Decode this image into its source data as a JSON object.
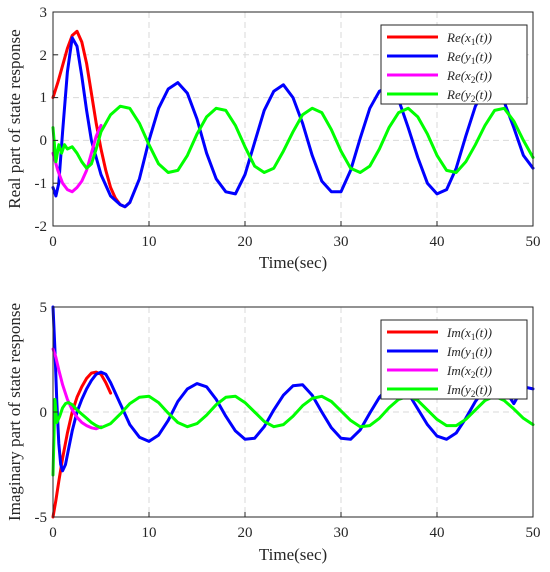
{
  "chart_data": [
    {
      "type": "line",
      "xlabel": "Time(sec)",
      "ylabel": "Real part of state response",
      "xlim": [
        0,
        50
      ],
      "ylim": [
        -2,
        3
      ],
      "xticks": [
        "0",
        "10",
        "20",
        "30",
        "40",
        "50"
      ],
      "yticks": [
        "-2",
        "-1",
        "0",
        "1",
        "2",
        "3"
      ],
      "grid": true,
      "legend_position": "top-right",
      "series": [
        {
          "name": "Re(x1(t))",
          "color": "#ff0000",
          "x": [
            0,
            0.5,
            1,
            1.5,
            2,
            2.5,
            3,
            3.5,
            4,
            4.5,
            5,
            5.5,
            6,
            6.5,
            7,
            7.5,
            8
          ],
          "y": [
            1.0,
            1.35,
            1.75,
            2.15,
            2.45,
            2.55,
            2.3,
            1.8,
            1.1,
            0.4,
            -0.2,
            -0.7,
            -1.1,
            -1.35,
            -1.5,
            -1.55,
            -1.45
          ]
        },
        {
          "name": "Re(y1(t))",
          "color": "#0000ff",
          "x": [
            0,
            0.3,
            0.6,
            1,
            1.5,
            2,
            2.5,
            3,
            3.5,
            4,
            5,
            6,
            7,
            7.5,
            8,
            9,
            10,
            11,
            12,
            13,
            14,
            15,
            16,
            17,
            18,
            19,
            20,
            21,
            22,
            23,
            24,
            25,
            26,
            27,
            28,
            29,
            30,
            31,
            32,
            33,
            34,
            35,
            36,
            37,
            38,
            39,
            40,
            41,
            42,
            43,
            44,
            45,
            46,
            47,
            48,
            49,
            50
          ],
          "y": [
            -1.1,
            -1.3,
            -1.0,
            0.2,
            1.6,
            2.4,
            2.2,
            1.5,
            0.7,
            0.0,
            -0.8,
            -1.3,
            -1.5,
            -1.55,
            -1.45,
            -0.9,
            0.0,
            0.75,
            1.2,
            1.35,
            1.1,
            0.5,
            -0.3,
            -0.9,
            -1.2,
            -1.25,
            -0.8,
            -0.05,
            0.7,
            1.15,
            1.3,
            1.0,
            0.4,
            -0.35,
            -0.95,
            -1.2,
            -1.2,
            -0.7,
            0.05,
            0.75,
            1.15,
            1.25,
            0.95,
            0.3,
            -0.4,
            -1.0,
            -1.25,
            -1.15,
            -0.65,
            0.1,
            0.8,
            1.2,
            1.25,
            0.9,
            0.3,
            -0.35,
            -0.65
          ]
        },
        {
          "name": "Re(x2(t))",
          "color": "#ff00ff",
          "x": [
            0,
            0.5,
            1,
            1.5,
            2,
            2.5,
            3,
            3.5,
            4,
            4.5,
            5
          ],
          "y": [
            -0.3,
            -0.7,
            -1.0,
            -1.15,
            -1.2,
            -1.1,
            -0.95,
            -0.7,
            -0.3,
            0.1,
            0.35
          ]
        },
        {
          "name": "Re(y2(t))",
          "color": "#00ff00",
          "x": [
            0,
            0.3,
            0.6,
            0.9,
            1.2,
            1.5,
            2,
            2.5,
            3,
            3.5,
            4,
            4.5,
            5,
            6,
            7,
            8,
            9,
            10,
            11,
            12,
            13,
            14,
            15,
            16,
            17,
            18,
            19,
            20,
            21,
            22,
            23,
            24,
            25,
            26,
            27,
            28,
            29,
            30,
            31,
            32,
            33,
            34,
            35,
            36,
            37,
            38,
            39,
            40,
            41,
            42,
            43,
            44,
            45,
            46,
            47,
            48,
            49,
            50
          ],
          "y": [
            0.3,
            -0.5,
            -0.1,
            -0.3,
            -0.1,
            -0.2,
            -0.15,
            -0.3,
            -0.5,
            -0.65,
            -0.55,
            -0.2,
            0.2,
            0.6,
            0.8,
            0.75,
            0.4,
            -0.1,
            -0.55,
            -0.75,
            -0.7,
            -0.35,
            0.15,
            0.55,
            0.75,
            0.7,
            0.35,
            -0.15,
            -0.6,
            -0.75,
            -0.65,
            -0.25,
            0.2,
            0.6,
            0.75,
            0.65,
            0.25,
            -0.25,
            -0.65,
            -0.75,
            -0.6,
            -0.2,
            0.3,
            0.65,
            0.75,
            0.55,
            0.15,
            -0.35,
            -0.7,
            -0.75,
            -0.5,
            -0.1,
            0.35,
            0.7,
            0.75,
            0.45,
            0.0,
            -0.4
          ]
        }
      ]
    },
    {
      "type": "line",
      "xlabel": "Time(sec)",
      "ylabel": "Imaginary part of state response",
      "xlim": [
        0,
        50
      ],
      "ylim": [
        -5,
        5
      ],
      "xticks": [
        "0",
        "10",
        "20",
        "30",
        "40",
        "50"
      ],
      "yticks": [
        "-5",
        "0",
        "5"
      ],
      "grid": true,
      "legend_position": "top-right",
      "series": [
        {
          "name": "Im(x1(t))",
          "color": "#ff0000",
          "x": [
            0,
            0.3,
            0.6,
            1,
            1.5,
            2,
            2.5,
            3,
            3.5,
            4,
            4.5,
            5,
            5.5,
            6
          ],
          "y": [
            -5.0,
            -4.2,
            -3.3,
            -2.2,
            -1.0,
            0.0,
            0.7,
            1.2,
            1.6,
            1.85,
            1.9,
            1.8,
            1.4,
            0.9
          ]
        },
        {
          "name": "Im(y1(t))",
          "color": "#0000ff",
          "x": [
            0,
            0.2,
            0.4,
            0.6,
            0.8,
            1,
            1.3,
            1.6,
            2,
            2.5,
            3,
            3.5,
            4,
            4.5,
            5,
            5.5,
            6,
            7,
            8,
            9,
            10,
            11,
            12,
            13,
            14,
            15,
            16,
            17,
            18,
            19,
            20,
            21,
            22,
            23,
            24,
            25,
            26,
            27,
            28,
            29,
            30,
            31,
            32,
            33,
            34,
            35,
            36,
            37,
            38,
            39,
            40,
            41,
            42,
            43,
            44,
            45,
            46,
            47,
            48,
            49,
            50
          ],
          "y": [
            5.0,
            3.0,
            0.5,
            -1.5,
            -2.5,
            -2.8,
            -2.5,
            -1.8,
            -0.9,
            0.0,
            0.6,
            1.1,
            1.5,
            1.8,
            1.9,
            1.8,
            1.4,
            0.4,
            -0.6,
            -1.2,
            -1.4,
            -1.1,
            -0.4,
            0.5,
            1.1,
            1.35,
            1.2,
            0.6,
            -0.2,
            -0.9,
            -1.3,
            -1.25,
            -0.7,
            0.1,
            0.8,
            1.25,
            1.3,
            0.8,
            0.0,
            -0.75,
            -1.25,
            -1.3,
            -0.85,
            -0.05,
            0.7,
            1.2,
            1.3,
            0.9,
            0.15,
            -0.6,
            -1.15,
            -1.3,
            -1.0,
            -0.3,
            0.5,
            1.1,
            1.3,
            1.1,
            0.4,
            1.2,
            1.1
          ]
        },
        {
          "name": "Im(x2(t))",
          "color": "#ff00ff",
          "x": [
            0,
            0.3,
            0.6,
            1,
            1.5,
            2,
            2.5,
            3,
            3.5,
            4,
            4.5,
            5
          ],
          "y": [
            3.0,
            2.6,
            2.0,
            1.3,
            0.6,
            0.1,
            -0.25,
            -0.5,
            -0.65,
            -0.75,
            -0.8,
            -0.7
          ]
        },
        {
          "name": "Im(y2(t))",
          "color": "#00ff00",
          "x": [
            0,
            0.2,
            0.4,
            0.7,
            1,
            1.3,
            1.6,
            2,
            2.5,
            3,
            3.5,
            4,
            4.5,
            5,
            6,
            7,
            8,
            9,
            10,
            11,
            12,
            13,
            14,
            15,
            16,
            17,
            18,
            19,
            20,
            21,
            22,
            23,
            24,
            25,
            26,
            27,
            28,
            29,
            30,
            31,
            32,
            33,
            34,
            35,
            36,
            37,
            38,
            39,
            40,
            41,
            42,
            43,
            44,
            45,
            46,
            47,
            48,
            49,
            50
          ],
          "y": [
            -3.0,
            0.6,
            -0.5,
            -0.2,
            0.2,
            0.4,
            0.45,
            0.35,
            0.1,
            -0.1,
            -0.3,
            -0.5,
            -0.65,
            -0.75,
            -0.55,
            -0.1,
            0.4,
            0.7,
            0.75,
            0.45,
            -0.05,
            -0.5,
            -0.7,
            -0.55,
            -0.15,
            0.35,
            0.7,
            0.75,
            0.45,
            0.0,
            -0.45,
            -0.7,
            -0.6,
            -0.2,
            0.3,
            0.65,
            0.75,
            0.5,
            0.05,
            -0.4,
            -0.7,
            -0.65,
            -0.3,
            0.2,
            0.6,
            0.75,
            0.55,
            0.1,
            -0.35,
            -0.65,
            -0.65,
            -0.35,
            0.1,
            0.55,
            0.75,
            0.55,
            0.15,
            -0.3,
            -0.6
          ]
        }
      ]
    }
  ]
}
